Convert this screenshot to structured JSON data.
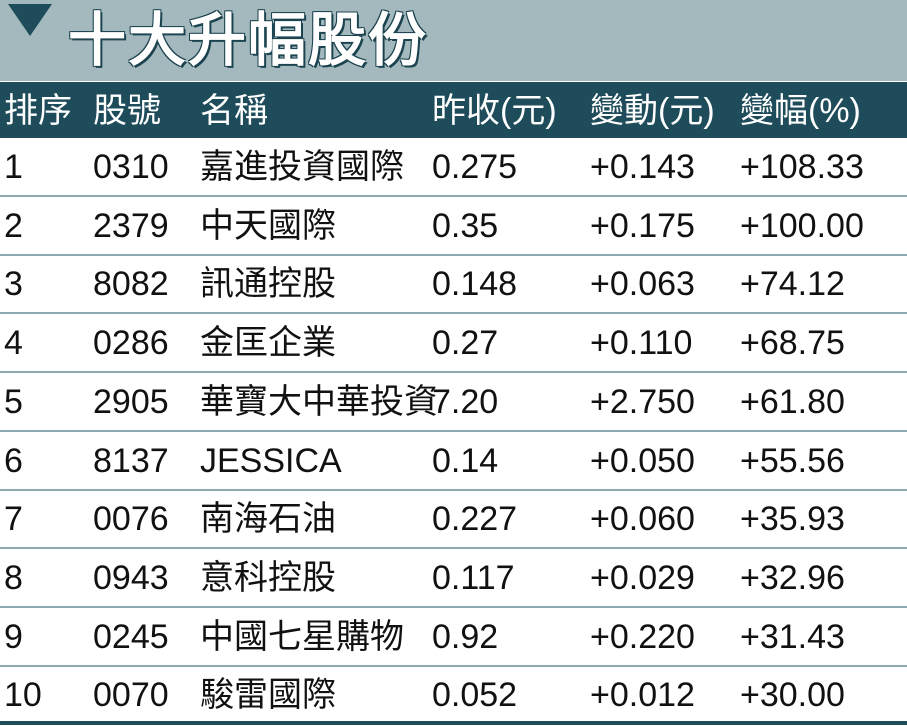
{
  "title": "十大升幅股份",
  "table": {
    "header": [
      "排序",
      "股號",
      "名稱",
      "昨收(元)",
      "變動(元)",
      "變幅(%)"
    ],
    "rows": [
      [
        "1",
        "0310",
        "嘉進投資國際",
        "0.275",
        "+0.143",
        "+108.33"
      ],
      [
        "2",
        "2379",
        "中天國際",
        "0.35",
        "+0.175",
        "+100.00"
      ],
      [
        "3",
        "8082",
        "訊通控股",
        "0.148",
        "+0.063",
        "+74.12"
      ],
      [
        "4",
        "0286",
        "金匡企業",
        "0.27",
        "+0.110",
        "+68.75"
      ],
      [
        "5",
        "2905",
        "華寶大中華投資",
        "7.20",
        "+2.750",
        "+61.80"
      ],
      [
        "6",
        "8137",
        "JESSICA",
        "0.14",
        "+0.050",
        "+55.56"
      ],
      [
        "7",
        "0076",
        "南海石油",
        "0.227",
        "+0.060",
        "+35.93"
      ],
      [
        "8",
        "0943",
        "意科控股",
        "0.117",
        "+0.029",
        "+32.96"
      ],
      [
        "9",
        "0245",
        "中國七星購物",
        "0.92",
        "+0.220",
        "+31.43"
      ],
      [
        "10",
        "0070",
        "駿雷國際",
        "0.052",
        "+0.012",
        "+30.00"
      ]
    ]
  }
}
